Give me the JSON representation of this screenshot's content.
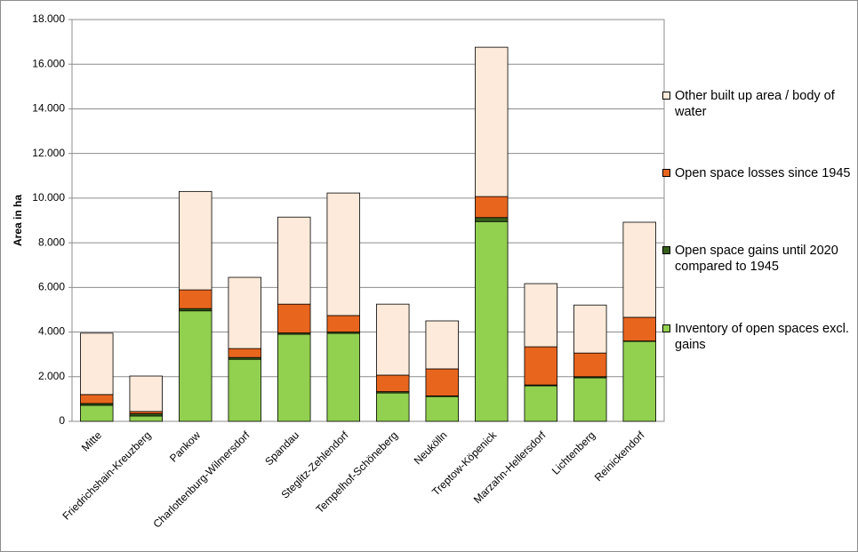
{
  "chart_data": {
    "type": "stacked-bar",
    "y_label": "Area in ha",
    "categories": [
      "Mitte",
      "Friedrichshain-Kreuzberg",
      "Pankow",
      "Charlottenburg-Wilmersdorf",
      "Spandau",
      "Steglitz-Zehlendorf",
      "Tempelhof-Schöneberg",
      "Neukölln",
      "Treptow-Köpenick",
      "Marzahn-Hellersdorf",
      "Lichtenberg",
      "Reinickendorf"
    ],
    "series": [
      {
        "name": "Inventory of open spaces excl. gains",
        "color": "#92d050",
        "values": [
          720,
          240,
          4950,
          2780,
          3900,
          3940,
          1270,
          1110,
          8950,
          1590,
          1950,
          3580
        ]
      },
      {
        "name": "Open space gains until 2020 compared to 1945",
        "color": "#375f1b",
        "values": [
          80,
          100,
          100,
          80,
          60,
          60,
          60,
          30,
          180,
          40,
          50,
          20
        ]
      },
      {
        "name": "Open space losses since 1945",
        "color": "#e8651e",
        "values": [
          400,
          100,
          840,
          400,
          1290,
          740,
          740,
          1210,
          940,
          1710,
          1060,
          1060
        ]
      },
      {
        "name": "Other built up area / body of water",
        "color": "#fdeada",
        "values": [
          2750,
          1590,
          4410,
          3190,
          3900,
          5490,
          3180,
          2150,
          6690,
          2830,
          2150,
          4260
        ]
      }
    ],
    "ylim": [
      0,
      18000
    ],
    "yticks": [
      0,
      {
        "value": 2000,
        "label": "2.000"
      },
      {
        "value": 4000,
        "label": "4.000"
      },
      {
        "value": 6000,
        "label": "6.000"
      },
      {
        "value": 8000,
        "label": "8.000"
      },
      {
        "value": 10000,
        "label": "10.000"
      },
      {
        "value": 12000,
        "label": "12.000"
      },
      {
        "value": 14000,
        "label": "14.000"
      },
      {
        "value": 16000,
        "label": "16.000"
      },
      {
        "value": 18000,
        "label": "18.000"
      }
    ],
    "grid": true,
    "legend": "right"
  }
}
